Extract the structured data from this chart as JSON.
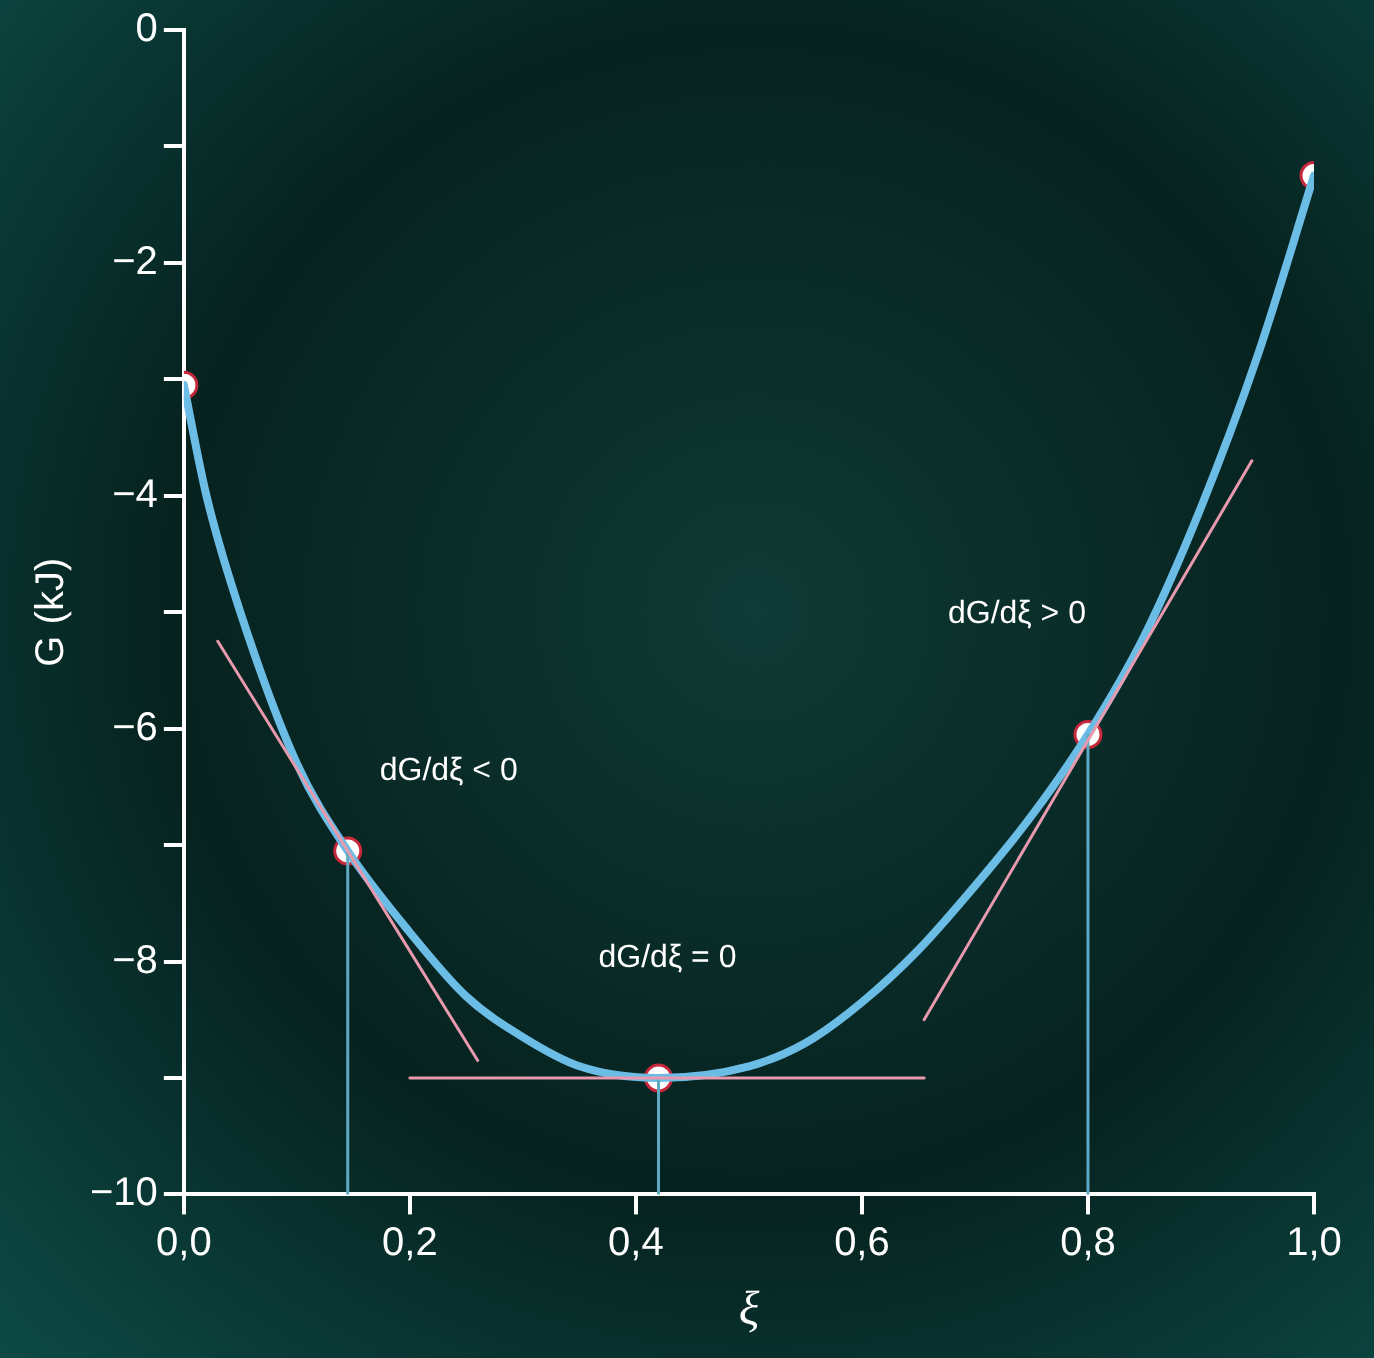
{
  "chart_data": {
    "type": "line",
    "xlabel": "ξ",
    "ylabel": "G (kJ)",
    "xlim": [
      0,
      1
    ],
    "ylim": [
      -10,
      0
    ],
    "xticks": [
      {
        "value": 0,
        "label": "0,0"
      },
      {
        "value": 0.2,
        "label": "0,2"
      },
      {
        "value": 0.4,
        "label": "0,4"
      },
      {
        "value": 0.6,
        "label": "0,6"
      },
      {
        "value": 0.8,
        "label": "0,8"
      },
      {
        "value": 1,
        "label": "1,0"
      }
    ],
    "yticks": [
      {
        "value": -10,
        "label": "−10"
      },
      {
        "value": -9,
        "label": null
      },
      {
        "value": -8,
        "label": "−8"
      },
      {
        "value": -7,
        "label": null
      },
      {
        "value": -6,
        "label": "−6"
      },
      {
        "value": -5,
        "label": null
      },
      {
        "value": -4,
        "label": "−4"
      },
      {
        "value": -3,
        "label": null
      },
      {
        "value": -2,
        "label": "−2"
      },
      {
        "value": -1,
        "label": null
      },
      {
        "value": 0,
        "label": "0"
      }
    ],
    "grid": false,
    "legend": false,
    "marker": "none",
    "series": [
      {
        "type": "line",
        "color": "#e79aae",
        "x": [
          0.03,
          0.26
        ],
        "values": [
          -5.25,
          -8.85
        ]
      },
      {
        "type": "line",
        "color": "#e79aae",
        "x": [
          0.2,
          0.655
        ],
        "values": [
          -9,
          -9
        ]
      },
      {
        "type": "line",
        "color": "#e79aae",
        "x": [
          0.655,
          0.945
        ],
        "values": [
          -8.5,
          -3.7
        ]
      },
      {
        "type": "line",
        "color": "#5fa9c4",
        "x": [
          0.145,
          0.145
        ],
        "values": [
          -10,
          -7.05
        ]
      },
      {
        "type": "line",
        "color": "#5fa9c4",
        "x": [
          0.42,
          0.42
        ],
        "values": [
          -10,
          -9
        ]
      },
      {
        "type": "line",
        "color": "#5fa9c4",
        "x": [
          0.8,
          0.8
        ],
        "values": [
          -10,
          -6.05
        ]
      },
      {
        "color": "#6cbde6",
        "x": [
          0,
          0.02,
          0.05,
          0.1,
          0.145,
          0.2,
          0.25,
          0.3,
          0.35,
          0.42,
          0.5,
          0.55,
          0.6,
          0.65,
          0.7,
          0.75,
          0.8,
          0.85,
          0.9,
          0.95,
          1
        ],
        "values": [
          -3.05,
          -4.0,
          -5.0,
          -6.3,
          -7.05,
          -7.75,
          -8.3,
          -8.65,
          -8.9,
          -9.0,
          -8.9,
          -8.7,
          -8.35,
          -7.9,
          -7.35,
          -6.75,
          -6.05,
          -5.2,
          -4.1,
          -2.8,
          -1.25
        ]
      },
      {
        "type": "scatter",
        "marker": "circle",
        "color": "#ffffff",
        "x": [
          0,
          0.145,
          0.42,
          0.8,
          1
        ],
        "values": [
          -3.05,
          -7.05,
          -9,
          -6.05,
          -1.25
        ]
      }
    ],
    "annotations": [
      "dG/dξ < 0",
      "dG/dξ = 0",
      "dG/dξ > 0"
    ]
  }
}
